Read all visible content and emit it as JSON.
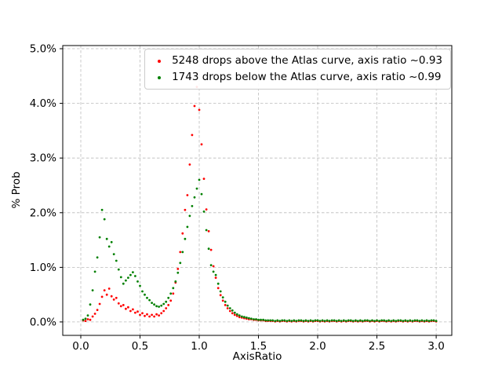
{
  "figure": {
    "background": "#ffffff"
  },
  "axes": {
    "xlabel": "AxisRatio",
    "ylabel": "% Prob"
  },
  "legend": {
    "entries": [
      {
        "label": "5248 drops above the Atlas curve, axis ratio ~0.93",
        "color": "#ff0000",
        "marker": "dot"
      },
      {
        "label": "1743 drops below the Atlas curve, axis ratio ~0.99",
        "color": "#008000",
        "marker": "dot"
      }
    ]
  },
  "chart_data": {
    "type": "scatter",
    "title": "",
    "xlabel": "AxisRatio",
    "ylabel": "% Prob",
    "y_units": "percent",
    "xlim": [
      -0.152,
      3.132
    ],
    "ylim": [
      -0.245,
      5.057
    ],
    "xticks": [
      0.0,
      0.5,
      1.0,
      1.5,
      2.0,
      2.5,
      3.0
    ],
    "xtick_labels": [
      "0.0",
      "0.5",
      "1.0",
      "1.5",
      "2.0",
      "2.5",
      "3.0"
    ],
    "yticks": [
      0.0,
      1.0,
      2.0,
      3.0,
      4.0,
      5.0
    ],
    "ytick_labels": [
      "0.0%",
      "1.0%",
      "2.0%",
      "3.0%",
      "4.0%",
      "5.0%"
    ],
    "grid": {
      "on": true,
      "style": "dashed",
      "color": "#bbbbbb"
    },
    "legend_position": "upper right",
    "marker_size_px": 1.4,
    "series": [
      {
        "name": "5248 drops above the Atlas curve, axis ratio ~0.93",
        "color": "#ff0000",
        "x_start": 0.02,
        "x_step": 0.02,
        "values": [
          0.03,
          0.02,
          0.05,
          0.04,
          0.1,
          0.15,
          0.22,
          0.33,
          0.46,
          0.58,
          0.5,
          0.61,
          0.47,
          0.41,
          0.44,
          0.34,
          0.29,
          0.31,
          0.24,
          0.27,
          0.2,
          0.23,
          0.17,
          0.19,
          0.13,
          0.16,
          0.11,
          0.14,
          0.1,
          0.13,
          0.1,
          0.14,
          0.12,
          0.16,
          0.2,
          0.25,
          0.31,
          0.39,
          0.52,
          0.72,
          0.97,
          1.28,
          1.62,
          2.05,
          2.32,
          2.88,
          3.42,
          3.95,
          4.3,
          3.88,
          3.25,
          2.62,
          2.06,
          1.66,
          1.32,
          1.02,
          0.81,
          0.62,
          0.49,
          0.39,
          0.31,
          0.25,
          0.2,
          0.16,
          0.13,
          0.11,
          0.09,
          0.08,
          0.07,
          0.06,
          0.05,
          0.05,
          0.04,
          0.04,
          0.03,
          0.03,
          0.03,
          0.02,
          0.02,
          0.02,
          0.02,
          0.01,
          0.02,
          0.01,
          0.02,
          0.02,
          0.01,
          0.02,
          0.01,
          0.02,
          0.01,
          0.02,
          0.02,
          0.01,
          0.02,
          0.01,
          0.02,
          0.01,
          0.02,
          0.02,
          0.01,
          0.02,
          0.01,
          0.02,
          0.01,
          0.02,
          0.02,
          0.01,
          0.02,
          0.01,
          0.02,
          0.01,
          0.02,
          0.02,
          0.01,
          0.02,
          0.01,
          0.02,
          0.01,
          0.02,
          0.02,
          0.01,
          0.02,
          0.01,
          0.02,
          0.01,
          0.02,
          0.02,
          0.01,
          0.02,
          0.01,
          0.02,
          0.01,
          0.02,
          0.02,
          0.01,
          0.02,
          0.01,
          0.02,
          0.01,
          0.02,
          0.02,
          0.01,
          0.02,
          0.01,
          0.02,
          0.01,
          0.02,
          0.02,
          0.01
        ]
      },
      {
        "name": "1743 drops below the Atlas curve, axis ratio ~0.99",
        "color": "#008000",
        "x_start": 0.02,
        "x_step": 0.02,
        "values": [
          0.04,
          0.06,
          0.12,
          0.32,
          0.58,
          0.92,
          1.18,
          1.55,
          2.05,
          1.88,
          1.52,
          1.38,
          1.46,
          1.24,
          1.12,
          0.96,
          0.82,
          0.7,
          0.76,
          0.81,
          0.86,
          0.91,
          0.84,
          0.74,
          0.66,
          0.56,
          0.5,
          0.44,
          0.4,
          0.35,
          0.32,
          0.29,
          0.28,
          0.3,
          0.33,
          0.37,
          0.44,
          0.52,
          0.62,
          0.74,
          0.9,
          1.08,
          1.28,
          1.52,
          1.74,
          1.94,
          2.12,
          2.28,
          2.44,
          2.6,
          2.34,
          2.02,
          1.68,
          1.34,
          1.04,
          0.92,
          0.86,
          0.7,
          0.56,
          0.45,
          0.37,
          0.3,
          0.25,
          0.21,
          0.17,
          0.14,
          0.12,
          0.1,
          0.09,
          0.08,
          0.07,
          0.06,
          0.05,
          0.05,
          0.04,
          0.04,
          0.04,
          0.03,
          0.03,
          0.03,
          0.03,
          0.02,
          0.03,
          0.02,
          0.03,
          0.03,
          0.02,
          0.03,
          0.02,
          0.03,
          0.02,
          0.03,
          0.03,
          0.02,
          0.03,
          0.02,
          0.03,
          0.02,
          0.03,
          0.03,
          0.02,
          0.03,
          0.02,
          0.03,
          0.02,
          0.03,
          0.03,
          0.02,
          0.03,
          0.02,
          0.03,
          0.02,
          0.03,
          0.03,
          0.02,
          0.03,
          0.02,
          0.03,
          0.02,
          0.03,
          0.03,
          0.02,
          0.03,
          0.02,
          0.03,
          0.02,
          0.03,
          0.03,
          0.02,
          0.03,
          0.02,
          0.03,
          0.02,
          0.03,
          0.03,
          0.02,
          0.03,
          0.02,
          0.03,
          0.02,
          0.03,
          0.03,
          0.02,
          0.03,
          0.02,
          0.03,
          0.02,
          0.03,
          0.03,
          0.02
        ]
      }
    ]
  }
}
